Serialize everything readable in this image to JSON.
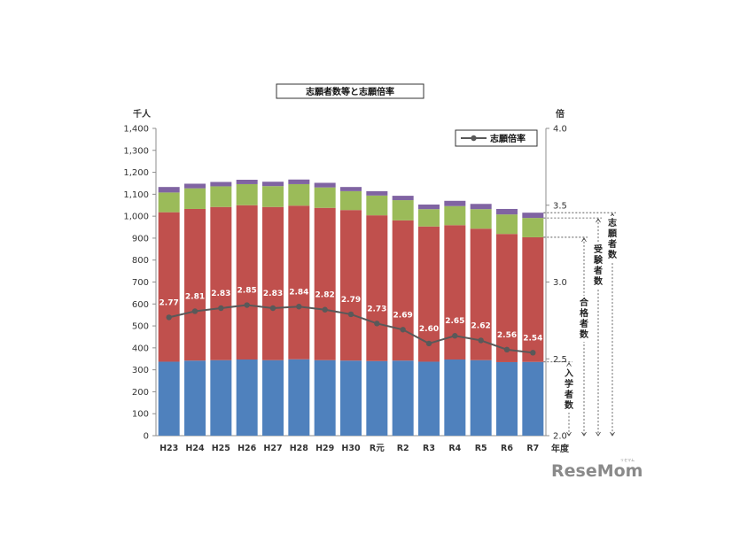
{
  "chart_data": {
    "type": "bar",
    "stacked": true,
    "title": "志願者数等と志願倍率",
    "left_unit": "千人",
    "right_unit": "倍",
    "xlabel": "年度",
    "categories": [
      "H23",
      "H24",
      "H25",
      "H26",
      "H27",
      "H28",
      "H29",
      "H30",
      "R元",
      "R2",
      "R3",
      "R4",
      "R5",
      "R6",
      "R7"
    ],
    "ylim": [
      0,
      1400
    ],
    "yticks": [
      0,
      100,
      200,
      300,
      400,
      500,
      600,
      700,
      800,
      900,
      1000,
      1100,
      1200,
      1300,
      1400
    ],
    "ytick_labels": [
      "0",
      "100",
      "200",
      "300",
      "400",
      "500",
      "600",
      "700",
      "800",
      "900",
      "1,000",
      "1,100",
      "1,200",
      "1,300",
      "1,400"
    ],
    "y2lim": [
      2.0,
      4.0
    ],
    "y2ticks": [
      2.0,
      2.5,
      3.0,
      3.5,
      4.0
    ],
    "y2tick_labels": [
      "2.0",
      "2.5",
      "3.0",
      "3.5",
      "4.0"
    ],
    "series": [
      {
        "name": "入学者数",
        "color": "#4f81bd",
        "values": [
          337,
          342,
          344,
          347,
          344,
          348,
          344,
          342,
          340,
          342,
          337,
          347,
          344,
          335,
          336
        ]
      },
      {
        "name": "合格者数",
        "color": "#c0504d",
        "values": [
          681,
          691,
          698,
          703,
          698,
          700,
          694,
          686,
          664,
          639,
          616,
          612,
          599,
          584,
          568
        ]
      },
      {
        "name": "受験者数",
        "color": "#9bbb59",
        "values": [
          90,
          94,
          94,
          96,
          95,
          98,
          93,
          86,
          90,
          92,
          79,
          87,
          89,
          89,
          88
        ]
      },
      {
        "name": "志願者数",
        "color": "#8064a2",
        "values": [
          25,
          21,
          20,
          20,
          20,
          21,
          21,
          19,
          20,
          20,
          21,
          24,
          24,
          25,
          24
        ]
      }
    ],
    "line": {
      "name": "志願倍率",
      "color": "#595959",
      "values": [
        2.77,
        2.81,
        2.83,
        2.85,
        2.83,
        2.84,
        2.82,
        2.79,
        2.73,
        2.69,
        2.6,
        2.65,
        2.62,
        2.56,
        2.54
      ],
      "labels": [
        "2.77",
        "2.81",
        "2.83",
        "2.85",
        "2.83",
        "2.84",
        "2.82",
        "2.79",
        "2.73",
        "2.69",
        "2.60",
        "2.65",
        "2.62",
        "2.56",
        "2.54"
      ]
    },
    "legend": {
      "position": "top-right",
      "entries": [
        "志願倍率"
      ]
    },
    "bracket_labels": [
      "志願者数",
      "受験者数",
      "合格者数",
      "入学者数"
    ]
  },
  "watermark": "ReseMom",
  "watermark_small": "リセマム"
}
